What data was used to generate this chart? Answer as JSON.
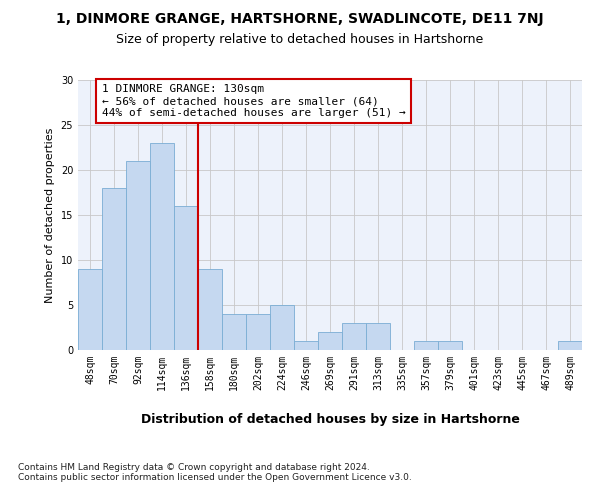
{
  "title1": "1, DINMORE GRANGE, HARTSHORNE, SWADLINCOTE, DE11 7NJ",
  "title2": "Size of property relative to detached houses in Hartshorne",
  "xlabel": "Distribution of detached houses by size in Hartshorne",
  "ylabel": "Number of detached properties",
  "categories": [
    "48sqm",
    "70sqm",
    "92sqm",
    "114sqm",
    "136sqm",
    "158sqm",
    "180sqm",
    "202sqm",
    "224sqm",
    "246sqm",
    "269sqm",
    "291sqm",
    "313sqm",
    "335sqm",
    "357sqm",
    "379sqm",
    "401sqm",
    "423sqm",
    "445sqm",
    "467sqm",
    "489sqm"
  ],
  "values": [
    9,
    18,
    21,
    23,
    16,
    9,
    4,
    4,
    5,
    1,
    2,
    3,
    3,
    0,
    1,
    1,
    0,
    0,
    0,
    0,
    1
  ],
  "bar_color": "#c5d8f0",
  "bar_edgecolor": "#7aadd4",
  "vline_index": 4,
  "annotation_text": "1 DINMORE GRANGE: 130sqm\n← 56% of detached houses are smaller (64)\n44% of semi-detached houses are larger (51) →",
  "annotation_box_color": "#ffffff",
  "annotation_box_edgecolor": "#cc0000",
  "vline_color": "#cc0000",
  "ylim": [
    0,
    30
  ],
  "yticks": [
    0,
    5,
    10,
    15,
    20,
    25,
    30
  ],
  "footer": "Contains HM Land Registry data © Crown copyright and database right 2024.\nContains public sector information licensed under the Open Government Licence v3.0.",
  "background_color": "#edf2fb",
  "grid_color": "#c8c8c8",
  "title1_fontsize": 10,
  "title2_fontsize": 9,
  "xlabel_fontsize": 9,
  "ylabel_fontsize": 8,
  "tick_fontsize": 7,
  "annotation_fontsize": 8,
  "footer_fontsize": 6.5
}
